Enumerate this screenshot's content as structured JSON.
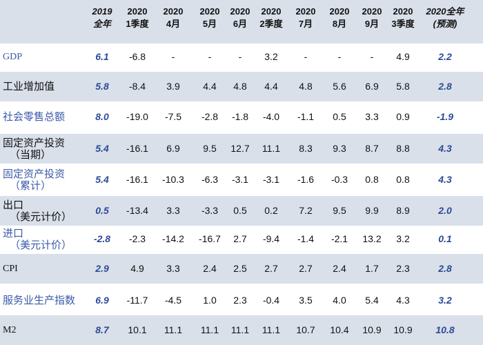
{
  "headers": [
    {
      "line1": "2019",
      "line2": "全年",
      "italic": true
    },
    {
      "line1": "2020",
      "line2": "1季度",
      "italic": false
    },
    {
      "line1": "2020",
      "line2": "4月",
      "italic": false
    },
    {
      "line1": "2020",
      "line2": "5月",
      "italic": false
    },
    {
      "line1": "2020",
      "line2": "6月",
      "italic": false
    },
    {
      "line1": "2020",
      "line2": "2季度",
      "italic": false
    },
    {
      "line1": "2020",
      "line2": "7月",
      "italic": false
    },
    {
      "line1": "2020",
      "line2": "8月",
      "italic": false
    },
    {
      "line1": "2020",
      "line2": "9月",
      "italic": false
    },
    {
      "line1": "2020",
      "line2": "3季度",
      "italic": false
    },
    {
      "line1": "2020全年",
      "line2": "(预测)",
      "italic": true
    }
  ],
  "rows": [
    {
      "label": "GDP",
      "sub": "",
      "label_color": "blue",
      "serif": true,
      "shade": false,
      "values": [
        "6.1",
        "-6.8",
        "-",
        "-",
        "-",
        "3.2",
        "-",
        "-",
        "-",
        "4.9",
        "2.2"
      ]
    },
    {
      "label": "工业增加值",
      "sub": "",
      "label_color": "black",
      "serif": false,
      "shade": true,
      "values": [
        "5.8",
        "-8.4",
        "3.9",
        "4.4",
        "4.8",
        "4.4",
        "4.8",
        "5.6",
        "6.9",
        "5.8",
        "2.8"
      ]
    },
    {
      "label": "社会零售总额",
      "sub": "",
      "label_color": "blue",
      "serif": false,
      "shade": false,
      "values": [
        "8.0",
        "-19.0",
        "-7.5",
        "-2.8",
        "-1.8",
        "-4.0",
        "-1.1",
        "0.5",
        "3.3",
        "0.9",
        "-1.9"
      ]
    },
    {
      "label": "固定资产投资",
      "sub": "（当期）",
      "label_color": "black",
      "serif": false,
      "shade": true,
      "values": [
        "5.4",
        "-16.1",
        "6.9",
        "9.5",
        "12.7",
        "11.1",
        "8.3",
        "9.3",
        "8.7",
        "8.8",
        "4.3"
      ]
    },
    {
      "label": "固定资产投资",
      "sub": "（累计）",
      "label_color": "blue",
      "serif": false,
      "shade": false,
      "values": [
        "5.4",
        "-16.1",
        "-10.3",
        "-6.3",
        "-3.1",
        "-3.1",
        "-1.6",
        "-0.3",
        "0.8",
        "0.8",
        "4.3"
      ]
    },
    {
      "label": "出口",
      "sub": "（美元计价）",
      "label_color": "black",
      "serif": false,
      "shade": true,
      "values": [
        "0.5",
        "-13.4",
        "3.3",
        "-3.3",
        "0.5",
        "0.2",
        "7.2",
        "9.5",
        "9.9",
        "8.9",
        "2.0"
      ]
    },
    {
      "label": "进口",
      "sub": "（美元计价）",
      "label_color": "blue",
      "serif": false,
      "shade": false,
      "values": [
        "-2.8",
        "-2.3",
        "-14.2",
        "-16.7",
        "2.7",
        "-9.4",
        "-1.4",
        "-2.1",
        "13.2",
        "3.2",
        "0.1"
      ]
    },
    {
      "label": "CPI",
      "sub": "",
      "label_color": "black",
      "serif": true,
      "shade": true,
      "values": [
        "2.9",
        "4.9",
        "3.3",
        "2.4",
        "2.5",
        "2.7",
        "2.7",
        "2.4",
        "1.7",
        "2.3",
        "2.8"
      ]
    },
    {
      "label": "服务业生产指数",
      "sub": "",
      "label_color": "blue",
      "serif": false,
      "shade": false,
      "values": [
        "6.9",
        "-11.7",
        "-4.5",
        "1.0",
        "2.3",
        "-0.4",
        "3.5",
        "4.0",
        "5.4",
        "4.3",
        "3.2"
      ]
    },
    {
      "label": "M2",
      "sub": "",
      "label_color": "black",
      "serif": true,
      "shade": true,
      "values": [
        "8.7",
        "10.1",
        "11.1",
        "11.1",
        "11.1",
        "11.1",
        "10.7",
        "10.4",
        "10.9",
        "10.9",
        "10.8"
      ]
    }
  ]
}
